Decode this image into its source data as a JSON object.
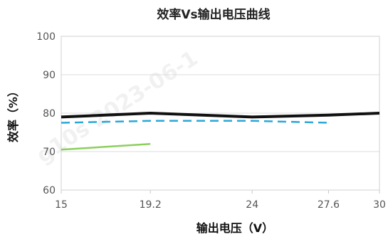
{
  "chart_data": {
    "type": "line",
    "title": "效率Vs输出电压曲线",
    "xlabel": "输出电压（V）",
    "ylabel": "效率（%）",
    "x_ticks": [
      "15",
      "19.2",
      "24",
      "27.6",
      "30"
    ],
    "x_tick_values": [
      15,
      19.2,
      24,
      27.6,
      30
    ],
    "xlim": [
      15,
      30
    ],
    "ylim": [
      60,
      100
    ],
    "y_ticks": [
      60,
      70,
      80,
      90,
      100
    ],
    "y_tick_labels": [
      "60",
      "70",
      "80",
      "90",
      "100"
    ],
    "grid": {
      "x": false,
      "y": true
    },
    "legend": "none",
    "watermark": "g10s 2023-06-1",
    "series": [
      {
        "x": [
          15,
          19.2,
          24,
          27.6,
          30
        ],
        "values": [
          79.0,
          80.0,
          79.0,
          79.5,
          80.0
        ],
        "color": "#111111",
        "style": "solid"
      },
      {
        "x": [
          15,
          19.2,
          24,
          27.6
        ],
        "values": [
          77.5,
          78.0,
          78.0,
          77.5
        ],
        "color": "#2aa7d8",
        "style": "dashed"
      },
      {
        "x": [
          15,
          19.2
        ],
        "values": [
          70.5,
          72.0
        ],
        "color": "#8ccf5c",
        "style": "solid"
      }
    ]
  }
}
